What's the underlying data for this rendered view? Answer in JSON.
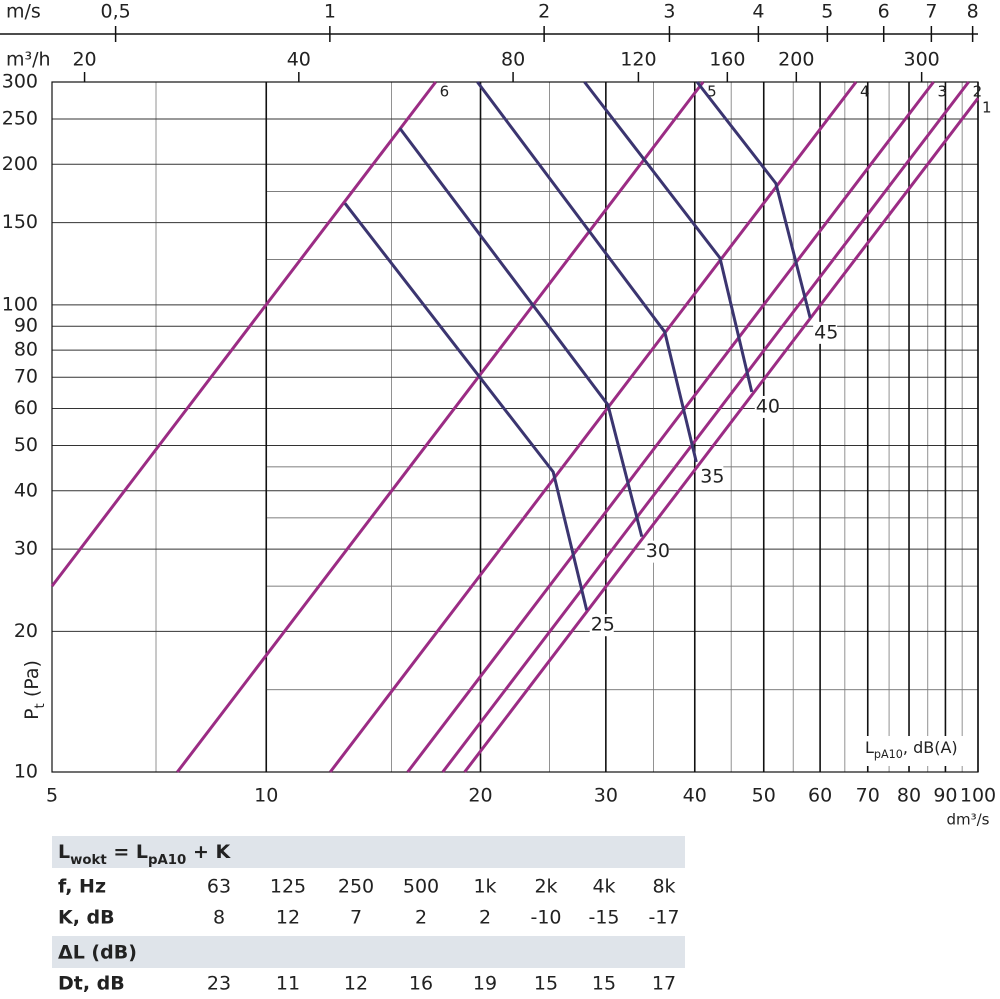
{
  "chart_data": {
    "type": "line",
    "log_x": true,
    "log_y": true,
    "grid": true,
    "x_label": "dm³/s",
    "y_label": [
      "P",
      "t",
      " (Pa)"
    ],
    "region_label": [
      "L",
      "pA10",
      ", dB(A)"
    ],
    "xlim": [
      5,
      100
    ],
    "ylim": [
      10,
      300
    ],
    "xticks": [
      5,
      10,
      20,
      30,
      40,
      50,
      60,
      70,
      80,
      90,
      100
    ],
    "minor_xticks": [
      7,
      15,
      25,
      35,
      45,
      55,
      65,
      75,
      85,
      95
    ],
    "yticks": [
      10,
      20,
      30,
      40,
      50,
      60,
      70,
      80,
      90,
      100,
      150,
      200,
      250,
      300
    ],
    "minor_yticks": [
      15,
      25,
      35,
      45,
      125,
      175
    ],
    "top_axes": [
      {
        "label": "m/s",
        "lim": [
          0.407,
          8.14
        ],
        "ticks": [
          {
            "value": 0.5,
            "label": "0,5"
          },
          1,
          2,
          3,
          4,
          5,
          6,
          7,
          8
        ]
      },
      {
        "label": "m³/h",
        "lim": [
          18,
          360
        ],
        "ticks": [
          20,
          40,
          80,
          120,
          160,
          200,
          300
        ]
      }
    ],
    "series": [
      {
        "name": "6",
        "color": "#9b2c84",
        "x": [
          5,
          17.3
        ],
        "values": [
          25,
          300
        ]
      },
      {
        "name": "5",
        "color": "#9b2c84",
        "x": [
          7.5,
          41.1
        ],
        "values": [
          10,
          300
        ]
      },
      {
        "name": "4",
        "color": "#9b2c84",
        "x": [
          12.3,
          67.4
        ],
        "values": [
          10,
          300
        ]
      },
      {
        "name": "3",
        "color": "#9b2c84",
        "x": [
          15.8,
          86.6
        ],
        "values": [
          10,
          300
        ]
      },
      {
        "name": "2",
        "color": "#9b2c84",
        "x": [
          17.7,
          97
        ],
        "values": [
          10,
          300
        ]
      },
      {
        "name": "1",
        "color": "#9b2c84",
        "x": [
          19,
          100
        ],
        "values": [
          10,
          277
        ]
      },
      {
        "name": "25",
        "color": "#3b3570",
        "x": [
          12.9,
          25.3,
          28.2
        ],
        "values": [
          165,
          43.9,
          22.2
        ]
      },
      {
        "name": "30",
        "color": "#3b3570",
        "x": [
          15.4,
          30.2,
          33.7
        ],
        "values": [
          239,
          61.1,
          31.9
        ]
      },
      {
        "name": "35",
        "color": "#3b3570",
        "x": [
          19.8,
          36.3,
          40.2
        ],
        "values": [
          300,
          87.5,
          46.1
        ]
      },
      {
        "name": "40",
        "color": "#3b3570",
        "x": [
          28,
          43.4,
          48.1
        ],
        "values": [
          300,
          126,
          65.1
        ]
      },
      {
        "name": "45",
        "color": "#3b3570",
        "x": [
          40.3,
          52,
          58.1
        ],
        "values": [
          300,
          182,
          93.8
        ]
      }
    ]
  },
  "table": {
    "formula": [
      "L",
      "wokt",
      " = L",
      "pA10",
      " + K"
    ],
    "freq_row": [
      "f, Hz",
      63,
      125,
      250,
      500,
      "1k",
      "2k",
      "4k",
      "8k"
    ],
    "k_row": [
      "K, dB",
      8,
      12,
      7,
      2,
      2,
      -10,
      -15,
      -17
    ],
    "delta_title": "ΔL (dB)",
    "dt_row": [
      "Dt, dB",
      23,
      11,
      12,
      16,
      19,
      15,
      15,
      17
    ]
  }
}
